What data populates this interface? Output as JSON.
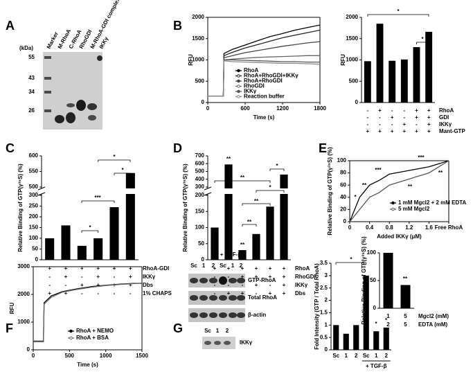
{
  "panels": {
    "letters": [
      "A",
      "B",
      "C",
      "D",
      "E",
      "F",
      "G"
    ],
    "gel": {
      "unit": "(kDa)",
      "markers": [
        55,
        43,
        34,
        26
      ],
      "lanes": [
        "Marker",
        "M-RhoA",
        "C-RhoA",
        "RhoGDI",
        "M-RhoA-GDI complex",
        "IKKγ"
      ]
    },
    "blot": {
      "treatment": "+ TGF-β",
      "lanes": [
        "Sc",
        "1",
        "2",
        "Sc",
        "1",
        "2"
      ],
      "rows": [
        "GTP-RhoA",
        "Total RhoA",
        "β-actin"
      ],
      "ikk_lanes": [
        "Sc",
        "1",
        "2"
      ],
      "ikk_label": "IKKγ"
    }
  },
  "chart_data": [
    {
      "type": "line",
      "ylabel": "RFU",
      "xlabel": "Time (s)",
      "x": [
        0,
        150,
        250,
        260,
        400,
        600,
        800,
        1000,
        1200,
        1400,
        1600,
        1800
      ],
      "xlim": [
        0,
        1800
      ],
      "xticks": [
        0,
        600,
        1200,
        1800
      ],
      "ylim": [
        0,
        2000
      ],
      "yticks": [
        0,
        500,
        1000,
        1500,
        2000
      ],
      "series": [
        {
          "name": "RhoA",
          "color": "#000000",
          "values": [
            150,
            150,
            150,
            1150,
            1250,
            1350,
            1450,
            1550,
            1620,
            1700,
            1760,
            1820
          ]
        },
        {
          "name": "RhoA+RhoGDI+IKKγ",
          "color": "#222222",
          "values": [
            150,
            150,
            150,
            1100,
            1180,
            1280,
            1360,
            1440,
            1520,
            1580,
            1640,
            1700
          ]
        },
        {
          "name": "RhoA+RhoGDI",
          "color": "#444444",
          "values": [
            150,
            150,
            150,
            1050,
            1100,
            1170,
            1220,
            1270,
            1320,
            1360,
            1400,
            1430
          ]
        },
        {
          "name": "RhoGDI",
          "color": "#666666",
          "values": [
            150,
            150,
            150,
            1000,
            1020,
            1040,
            1060,
            1070,
            1080,
            1090,
            1100,
            1100
          ]
        },
        {
          "name": "IKKγ",
          "color": "#555555",
          "values": [
            150,
            150,
            150,
            1000,
            1000,
            990,
            980,
            970,
            960,
            960,
            950,
            950
          ]
        },
        {
          "name": "Reaction buffer",
          "color": "#888888",
          "values": [
            150,
            150,
            150,
            980,
            960,
            950,
            940,
            930,
            920,
            920,
            910,
            900
          ]
        }
      ]
    },
    {
      "type": "bar",
      "ylabel": "RFU",
      "values": [
        970,
        1850,
        980,
        1010,
        1300,
        1660
      ],
      "color": "#000000",
      "ylim": [
        0,
        2000
      ],
      "yticks": [
        0,
        500,
        1000,
        1500,
        2000
      ],
      "conditions": [
        {
          "label": "RhoA",
          "signs": [
            "-",
            "+",
            "-",
            "-",
            "+",
            "+"
          ]
        },
        {
          "label": "GDI",
          "signs": [
            "-",
            "-",
            "+",
            "-",
            "+",
            "+"
          ]
        },
        {
          "label": "IKKγ",
          "signs": [
            "-",
            "-",
            "-",
            "+",
            "-",
            "+"
          ]
        },
        {
          "label": "Mant-GTP",
          "signs": [
            "+",
            "+",
            "+",
            "+",
            "+",
            "+"
          ]
        }
      ],
      "annotations": [
        "*",
        "*"
      ]
    },
    {
      "type": "bar",
      "ylabel": "Relative Binding of GTP(γ³⁵S) (%)",
      "values": [
        100,
        160,
        65,
        100,
        245,
        545
      ],
      "color": "#000000",
      "ylim": [
        0,
        600
      ],
      "axis_break": [
        300,
        500
      ],
      "yticks": [
        0,
        50,
        100,
        150,
        200,
        250,
        300,
        500,
        550,
        600
      ],
      "conditions": [
        {
          "label": "RhoA-GDI",
          "signs": [
            "+",
            "+",
            "+",
            "+",
            "+",
            "+"
          ]
        },
        {
          "label": "IKKγ",
          "signs": [
            "-",
            "+",
            "-",
            "+",
            "-",
            "+"
          ]
        },
        {
          "label": "Dbs",
          "signs": [
            "-",
            "-",
            "+",
            "+",
            "+",
            "+"
          ]
        },
        {
          "label": "1% CHAPS",
          "signs": [
            "+",
            "+",
            "-",
            "-",
            "-",
            "-"
          ]
        }
      ],
      "annotations": [
        "*",
        "*",
        "***",
        "*"
      ]
    },
    {
      "type": "bar",
      "ylabel": "Relative Binding of GTP(γ³⁵S) (%)",
      "values": [
        100,
        590,
        30,
        80,
        165,
        460
      ],
      "color": "#000000",
      "ylim": [
        0,
        700
      ],
      "axis_break": [
        200,
        300
      ],
      "yticks": [
        0,
        50,
        100,
        150,
        200,
        300,
        400,
        500,
        600,
        700
      ],
      "conditions": [
        {
          "label": "RhoA",
          "signs": [
            "+",
            "+",
            "+",
            "+",
            "+",
            "+"
          ]
        },
        {
          "label": "RhoGDI",
          "signs": [
            "-",
            "-",
            "+",
            "+",
            "+",
            "+"
          ]
        },
        {
          "label": "IKKγ",
          "signs": [
            "-",
            "-",
            "-",
            "+",
            "-",
            "+"
          ]
        },
        {
          "label": "Dbs",
          "signs": [
            "-",
            "+",
            "+",
            "-",
            "+",
            "+"
          ]
        }
      ],
      "annotations": [
        "**",
        "**",
        "*",
        "*",
        "**",
        "**",
        "**"
      ]
    },
    {
      "type": "line",
      "ylabel": "Relative Binding of GTP(γ³⁵S) (%)",
      "xlabel": "Added IKKγ (μM)",
      "x": [
        0,
        0.2,
        0.4,
        0.6,
        0.8,
        1.6,
        2
      ],
      "xlim": [
        0,
        2
      ],
      "xticks": [
        0,
        0.4,
        0.8,
        1.2,
        1.6,
        {
          "value": 2,
          "label": "Free RhoA"
        }
      ],
      "ylim": [
        0,
        100
      ],
      "yticks": [
        0,
        20,
        40,
        60,
        80,
        100
      ],
      "series": [
        {
          "name": "1 mM Mgcl2 + 2 mM EDTA",
          "color": "#000000",
          "values": [
            0,
            40,
            60,
            68,
            78,
            90,
            100
          ]
        },
        {
          "name": "5 mM Mgcl2",
          "color": "#555555",
          "values": [
            0,
            20,
            40,
            48,
            60,
            80,
            100
          ]
        }
      ],
      "annotations": [
        "*",
        "**",
        "***",
        "**",
        "***",
        "**"
      ]
    },
    {
      "type": "bar",
      "ylabel": "Relative Binding of GTP(γ³⁵S) (%)",
      "values": [
        100,
        42
      ],
      "color": "#000000",
      "ylim": [
        0,
        100
      ],
      "yticks": [
        0,
        50,
        100
      ],
      "conditions": [
        {
          "label": "Mgcl2 (mM)",
          "signs": [
            "1",
            "5"
          ]
        },
        {
          "label": "EDTA (mM)",
          "signs": [
            "2",
            "5"
          ]
        }
      ],
      "annotations": [
        "**"
      ]
    },
    {
      "type": "line",
      "ylabel": "RFU",
      "xlabel": "Time (s)",
      "x": [
        0,
        100,
        140,
        150,
        250,
        400,
        600,
        800,
        1000,
        1200,
        1400,
        1500
      ],
      "xlim": [
        0,
        1500
      ],
      "xticks": [
        0,
        500,
        1000,
        1500
      ],
      "ylim": [
        0,
        3000
      ],
      "yticks": [
        0,
        1000,
        2000,
        3000
      ],
      "series": [
        {
          "name": "RhoA + NEMO",
          "color": "#000000",
          "values": [
            300,
            300,
            300,
            1700,
            1950,
            2100,
            2200,
            2280,
            2330,
            2370,
            2400,
            2400
          ]
        },
        {
          "name": "RhoA + BSA",
          "color": "#666666",
          "values": [
            320,
            320,
            320,
            1650,
            1900,
            2080,
            2180,
            2260,
            2320,
            2360,
            2390,
            2410
          ]
        }
      ]
    },
    {
      "type": "bar",
      "ylabel": "Fold Intensity (GTP / Total RhoA)",
      "categories": [
        "Sc",
        "1",
        "2",
        "Sc",
        "1",
        "2"
      ],
      "values": [
        1,
        0.65,
        1,
        3,
        0.75,
        0.9
      ],
      "color": "#000000",
      "ylim": [
        0,
        3.5
      ],
      "yticks": [
        0,
        0.5,
        1,
        1.5,
        2,
        2.5,
        3,
        3.5
      ],
      "group": "+ TGF-β",
      "annotations": [
        "*",
        "*",
        "*"
      ]
    }
  ]
}
